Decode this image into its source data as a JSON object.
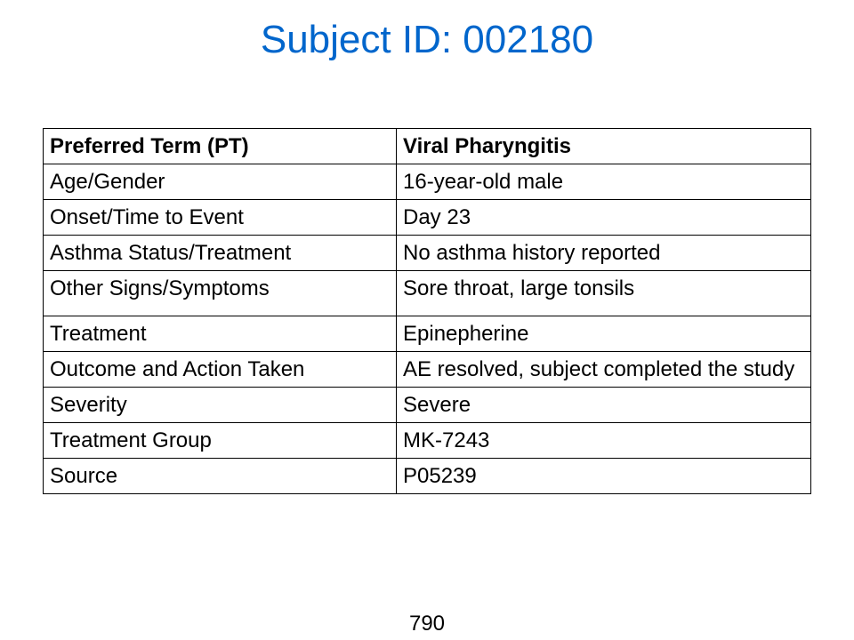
{
  "slide": {
    "title": "Subject ID: 002180",
    "page_number": "790"
  },
  "colors": {
    "title": "#0066cc",
    "text": "#000000",
    "border": "#000000",
    "background": "#ffffff"
  },
  "table": {
    "rows": [
      {
        "label": "Preferred Term (PT)",
        "value": "Viral Pharyngitis"
      },
      {
        "label": "Age/Gender",
        "value": "16-year-old male"
      },
      {
        "label": "Onset/Time to Event",
        "value": "Day 23"
      },
      {
        "label": "Asthma Status/Treatment",
        "value": "No asthma history reported"
      },
      {
        "label": "Other Signs/Symptoms",
        "value": "Sore throat, large tonsils"
      },
      {
        "label": "Treatment",
        "value": "Epinepherine"
      },
      {
        "label": "Outcome and Action Taken",
        "value": "AE resolved, subject completed the study"
      },
      {
        "label": "Severity",
        "value": "Severe"
      },
      {
        "label": "Treatment Group",
        "value": "MK-7243"
      },
      {
        "label": "Source",
        "value": "P05239"
      }
    ]
  }
}
